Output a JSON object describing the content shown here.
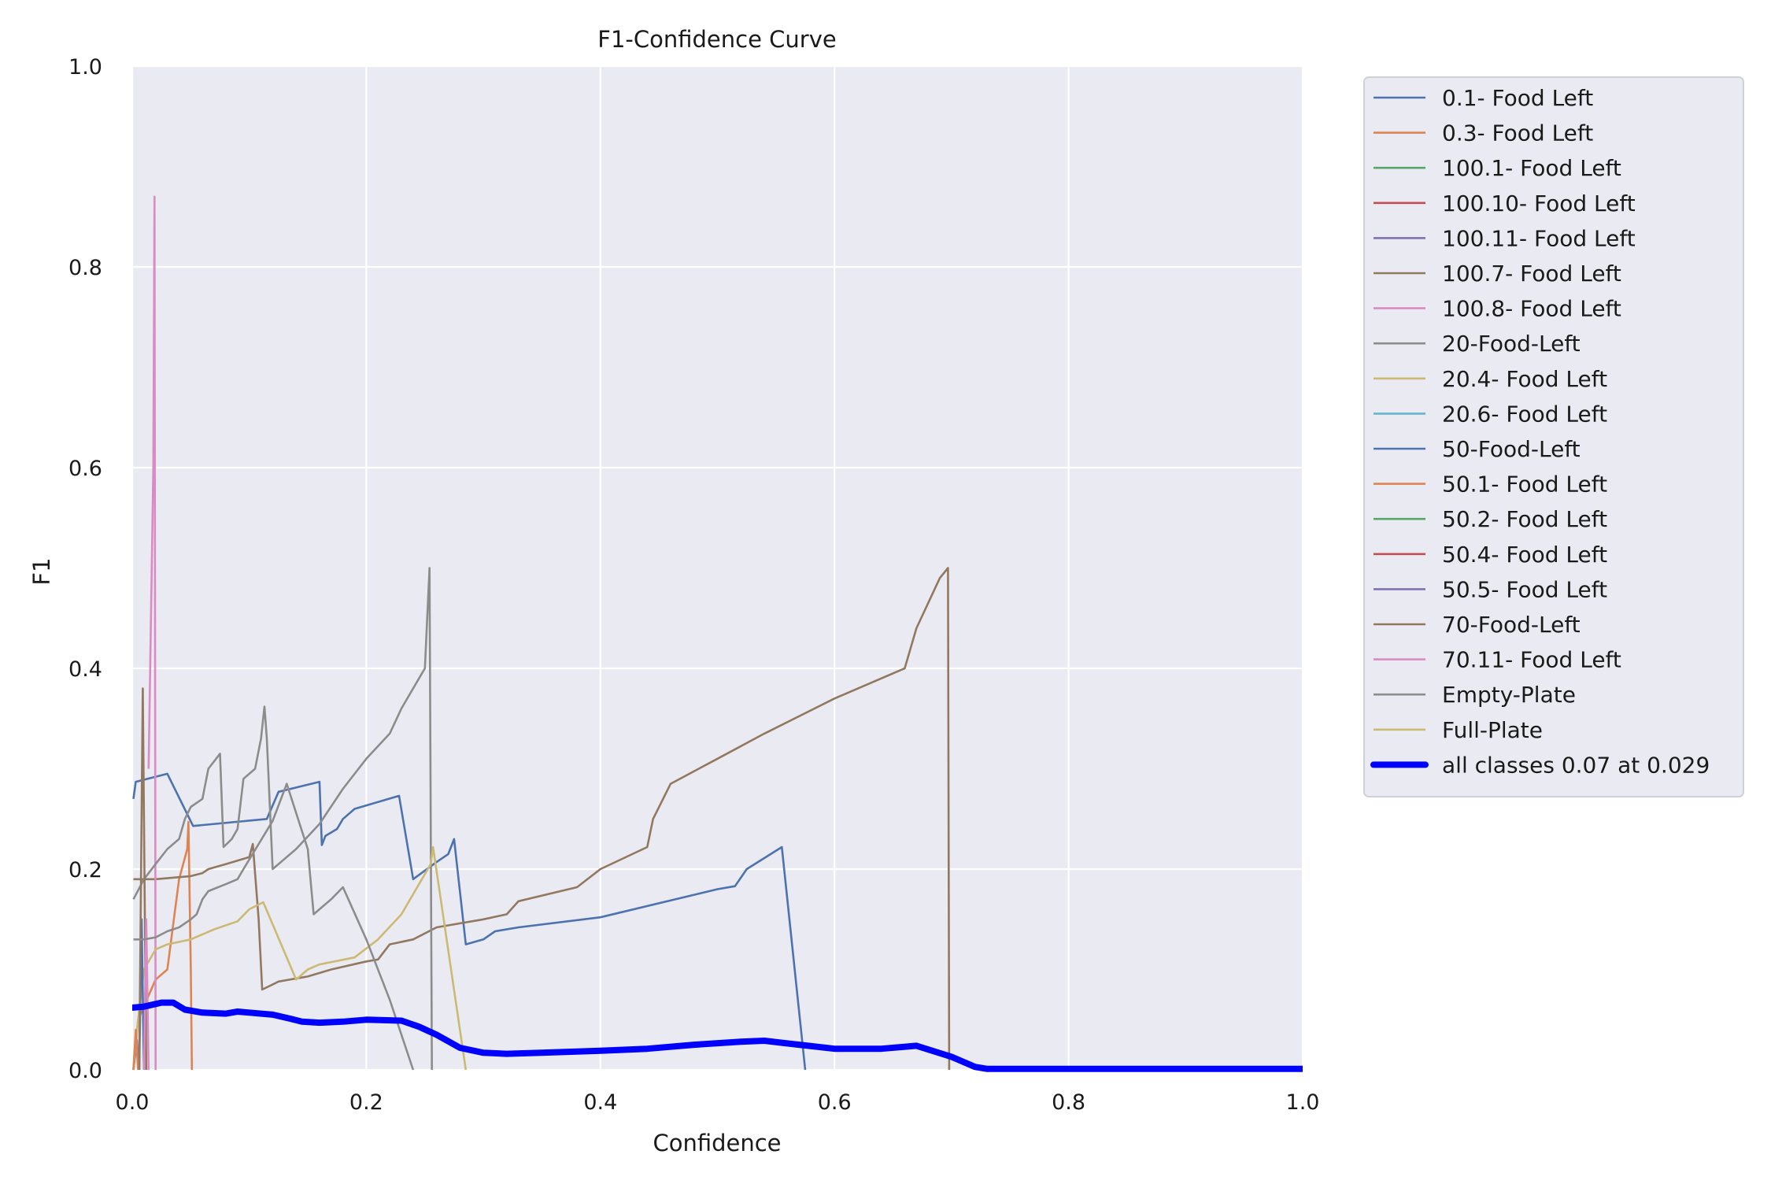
{
  "chart_data": {
    "type": "line",
    "title": "F1-Confidence Curve",
    "xlabel": "Confidence",
    "ylabel": "F1",
    "xlim": [
      0,
      1
    ],
    "ylim": [
      0,
      1
    ],
    "x_ticks": [
      0,
      0.2,
      0.4,
      0.6,
      0.8,
      1.0
    ],
    "x_tick_labels": [
      "0.0",
      "0.2",
      "0.4",
      "0.6",
      "0.8",
      "1.0"
    ],
    "y_ticks": [
      0,
      0.2,
      0.4,
      0.6,
      0.8,
      1.0
    ],
    "y_tick_labels": [
      "0.0",
      "0.2",
      "0.4",
      "0.6",
      "0.8",
      "1.0"
    ],
    "grid": true,
    "legend_position": "outside-right-top",
    "series": [
      {
        "name": "0.1- Food Left",
        "color": "#4c72b0",
        "points": [
          [
            0.001,
            0.27
          ],
          [
            0.003,
            0.287
          ],
          [
            0.03,
            0.295
          ],
          [
            0.052,
            0.243
          ],
          [
            0.115,
            0.25
          ],
          [
            0.125,
            0.277
          ],
          [
            0.16,
            0.287
          ],
          [
            0.162,
            0.224
          ],
          [
            0.165,
            0.233
          ],
          [
            0.175,
            0.24
          ],
          [
            0.18,
            0.25
          ],
          [
            0.19,
            0.26
          ],
          [
            0.228,
            0.273
          ],
          [
            0.24,
            0.19
          ],
          [
            0.26,
            0.207
          ],
          [
            0.27,
            0.215
          ],
          [
            0.275,
            0.23
          ],
          [
            0.285,
            0.125
          ],
          [
            0.3,
            0.13
          ],
          [
            0.31,
            0.138
          ],
          [
            0.33,
            0.142
          ],
          [
            0.4,
            0.152
          ],
          [
            0.5,
            0.18
          ],
          [
            0.515,
            0.183
          ],
          [
            0.525,
            0.2
          ],
          [
            0.555,
            0.222
          ],
          [
            0.575,
            0
          ]
        ]
      },
      {
        "name": "0.3- Food Left",
        "color": "#dd8452",
        "points": [
          [
            0.001,
            0.0
          ],
          [
            0.005,
            0.05
          ],
          [
            0.02,
            0.09
          ],
          [
            0.03,
            0.1
          ],
          [
            0.04,
            0.19
          ],
          [
            0.047,
            0.22
          ],
          [
            0.048,
            0.247
          ],
          [
            0.05,
            0.1
          ],
          [
            0.051,
            0
          ]
        ]
      },
      {
        "name": "100.1- Food Left",
        "color": "#55a868",
        "points": []
      },
      {
        "name": "100.10- Food Left",
        "color": "#c44e52",
        "points": []
      },
      {
        "name": "100.11- Food Left",
        "color": "#8172b3",
        "points": [
          [
            0.001,
            0.0
          ],
          [
            0.004,
            0.03
          ],
          [
            0.006,
            0.0
          ]
        ]
      },
      {
        "name": "100.7- Food Left",
        "color": "#937860",
        "points": [
          [
            0.001,
            0.19
          ],
          [
            0.02,
            0.19
          ],
          [
            0.05,
            0.193
          ],
          [
            0.06,
            0.196
          ],
          [
            0.065,
            0.2
          ],
          [
            0.08,
            0.205
          ],
          [
            0.1,
            0.212
          ],
          [
            0.103,
            0.225
          ],
          [
            0.108,
            0.15
          ],
          [
            0.111,
            0.08
          ],
          [
            0.12,
            0.085
          ],
          [
            0.125,
            0.088
          ],
          [
            0.15,
            0.093
          ],
          [
            0.17,
            0.1
          ],
          [
            0.2,
            0.108
          ],
          [
            0.21,
            0.11
          ],
          [
            0.22,
            0.125
          ],
          [
            0.24,
            0.13
          ],
          [
            0.26,
            0.142
          ],
          [
            0.3,
            0.15
          ],
          [
            0.32,
            0.155
          ],
          [
            0.33,
            0.168
          ],
          [
            0.38,
            0.182
          ],
          [
            0.4,
            0.2
          ],
          [
            0.44,
            0.222
          ],
          [
            0.445,
            0.25
          ],
          [
            0.46,
            0.285
          ],
          [
            0.5,
            0.31
          ],
          [
            0.54,
            0.335
          ],
          [
            0.6,
            0.37
          ],
          [
            0.66,
            0.4
          ],
          [
            0.67,
            0.44
          ],
          [
            0.69,
            0.49
          ],
          [
            0.697,
            0.5
          ],
          [
            0.698,
            0
          ]
        ]
      },
      {
        "name": "100.8- Food Left",
        "color": "#da8bc3",
        "points": [
          [
            0.014,
            0.3
          ],
          [
            0.018,
            0.6
          ],
          [
            0.019,
            0.87
          ],
          [
            0.02,
            0
          ]
        ]
      },
      {
        "name": "20-Food-Left",
        "color": "#8c8c8c",
        "points": [
          [
            0.001,
            0.17
          ],
          [
            0.01,
            0.19
          ],
          [
            0.02,
            0.205
          ],
          [
            0.03,
            0.22
          ],
          [
            0.04,
            0.23
          ],
          [
            0.045,
            0.25
          ],
          [
            0.05,
            0.262
          ],
          [
            0.06,
            0.27
          ],
          [
            0.065,
            0.3
          ],
          [
            0.075,
            0.315
          ],
          [
            0.078,
            0.222
          ],
          [
            0.085,
            0.23
          ],
          [
            0.09,
            0.24
          ],
          [
            0.095,
            0.29
          ],
          [
            0.105,
            0.3
          ],
          [
            0.11,
            0.33
          ],
          [
            0.113,
            0.362
          ],
          [
            0.115,
            0.33
          ],
          [
            0.12,
            0.2
          ],
          [
            0.13,
            0.21
          ],
          [
            0.14,
            0.22
          ],
          [
            0.16,
            0.245
          ],
          [
            0.18,
            0.28
          ],
          [
            0.2,
            0.31
          ],
          [
            0.22,
            0.335
          ],
          [
            0.23,
            0.36
          ],
          [
            0.245,
            0.39
          ],
          [
            0.25,
            0.4
          ],
          [
            0.254,
            0.5
          ],
          [
            0.256,
            0
          ]
        ]
      },
      {
        "name": "20.4- Food Left",
        "color": "#ccb974",
        "points": [
          [
            0.001,
            0.0
          ],
          [
            0.003,
            0.03
          ],
          [
            0.01,
            0.1
          ],
          [
            0.02,
            0.12
          ],
          [
            0.03,
            0.125
          ],
          [
            0.05,
            0.13
          ],
          [
            0.06,
            0.135
          ],
          [
            0.07,
            0.14
          ],
          [
            0.09,
            0.148
          ],
          [
            0.1,
            0.16
          ],
          [
            0.112,
            0.167
          ],
          [
            0.14,
            0.09
          ],
          [
            0.15,
            0.1
          ],
          [
            0.16,
            0.105
          ],
          [
            0.19,
            0.112
          ],
          [
            0.21,
            0.13
          ],
          [
            0.23,
            0.155
          ],
          [
            0.255,
            0.205
          ],
          [
            0.257,
            0.222
          ],
          [
            0.285,
            0
          ]
        ]
      },
      {
        "name": "20.6- Food Left",
        "color": "#64b5cd",
        "points": []
      },
      {
        "name": "50-Food-Left",
        "color": "#4c72b0",
        "points": [
          [
            0.006,
            0.0
          ],
          [
            0.008,
            0.15
          ],
          [
            0.01,
            0.0
          ]
        ]
      },
      {
        "name": "50.1- Food Left",
        "color": "#dd8452",
        "points": [
          [
            0.001,
            0.0
          ],
          [
            0.003,
            0.04
          ],
          [
            0.005,
            0.0
          ]
        ]
      },
      {
        "name": "50.2- Food Left",
        "color": "#55a868",
        "points": []
      },
      {
        "name": "50.4- Food Left",
        "color": "#c44e52",
        "points": []
      },
      {
        "name": "50.5- Food Left",
        "color": "#8172b3",
        "points": []
      },
      {
        "name": "70-Food-Left",
        "color": "#937860",
        "points": [
          [
            0.006,
            0.0
          ],
          [
            0.009,
            0.38
          ],
          [
            0.012,
            0.0
          ]
        ]
      },
      {
        "name": "70.11- Food Left",
        "color": "#da8bc3",
        "points": [
          [
            0.01,
            0.0
          ],
          [
            0.012,
            0.15
          ],
          [
            0.014,
            0.0
          ]
        ]
      },
      {
        "name": "Empty-Plate",
        "color": "#8c8c8c",
        "points": [
          [
            0.001,
            0.13
          ],
          [
            0.01,
            0.13
          ],
          [
            0.02,
            0.132
          ],
          [
            0.03,
            0.138
          ],
          [
            0.04,
            0.142
          ],
          [
            0.05,
            0.15
          ],
          [
            0.055,
            0.155
          ],
          [
            0.06,
            0.17
          ],
          [
            0.065,
            0.178
          ],
          [
            0.08,
            0.185
          ],
          [
            0.09,
            0.19
          ],
          [
            0.095,
            0.2
          ],
          [
            0.12,
            0.248
          ],
          [
            0.132,
            0.285
          ],
          [
            0.15,
            0.22
          ],
          [
            0.155,
            0.155
          ],
          [
            0.16,
            0.16
          ],
          [
            0.17,
            0.17
          ],
          [
            0.18,
            0.182
          ],
          [
            0.2,
            0.13
          ],
          [
            0.22,
            0.07
          ],
          [
            0.24,
            0
          ]
        ]
      },
      {
        "name": "Full-Plate",
        "color": "#ccb974",
        "points": []
      },
      {
        "name": "all classes 0.07 at 0.029",
        "color": "#0000ff",
        "bold": true,
        "points": [
          [
            0.0,
            0.062
          ],
          [
            0.01,
            0.063
          ],
          [
            0.025,
            0.067
          ],
          [
            0.035,
            0.067
          ],
          [
            0.045,
            0.06
          ],
          [
            0.06,
            0.057
          ],
          [
            0.08,
            0.056
          ],
          [
            0.09,
            0.058
          ],
          [
            0.1,
            0.057
          ],
          [
            0.12,
            0.055
          ],
          [
            0.135,
            0.051
          ],
          [
            0.145,
            0.048
          ],
          [
            0.16,
            0.047
          ],
          [
            0.18,
            0.048
          ],
          [
            0.2,
            0.05
          ],
          [
            0.23,
            0.049
          ],
          [
            0.245,
            0.043
          ],
          [
            0.26,
            0.035
          ],
          [
            0.28,
            0.022
          ],
          [
            0.3,
            0.017
          ],
          [
            0.32,
            0.016
          ],
          [
            0.35,
            0.017
          ],
          [
            0.4,
            0.019
          ],
          [
            0.44,
            0.021
          ],
          [
            0.48,
            0.025
          ],
          [
            0.52,
            0.028
          ],
          [
            0.54,
            0.029
          ],
          [
            0.555,
            0.027
          ],
          [
            0.6,
            0.021
          ],
          [
            0.64,
            0.021
          ],
          [
            0.67,
            0.024
          ],
          [
            0.7,
            0.013
          ],
          [
            0.72,
            0.003
          ],
          [
            0.73,
            0.001
          ],
          [
            1.0,
            0.001
          ]
        ]
      }
    ]
  }
}
